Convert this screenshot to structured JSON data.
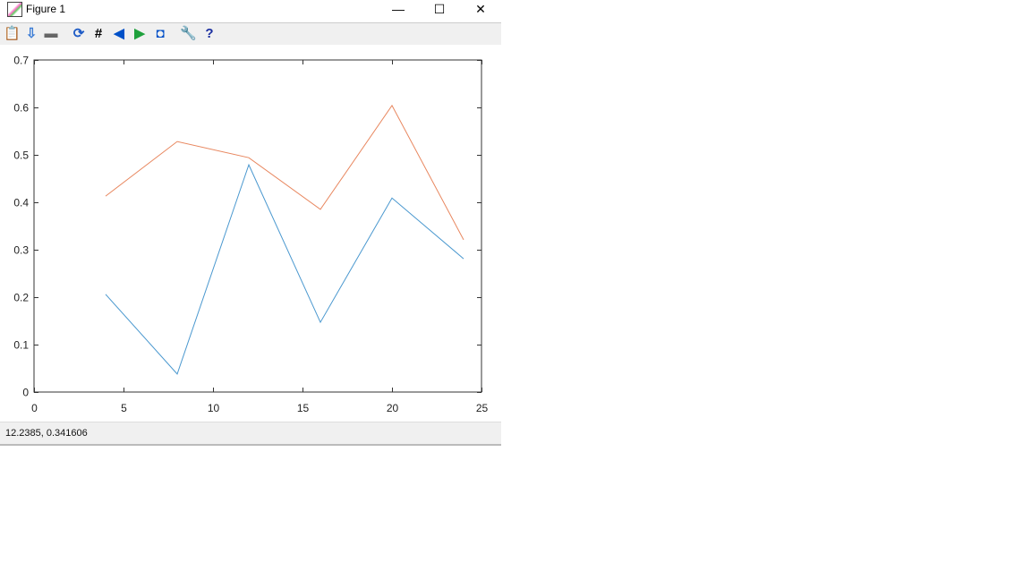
{
  "window": {
    "title": "Figure 1",
    "minimize": "—",
    "maximize": "☐",
    "close": "✕"
  },
  "toolbar": [
    {
      "name": "copy-icon",
      "glyph": "📋",
      "color": "#c8b48c"
    },
    {
      "name": "save-icon",
      "glyph": "⇩",
      "color": "#3a7bd5"
    },
    {
      "name": "print-icon",
      "glyph": "▬",
      "color": "#666"
    },
    {
      "name": "rotate-icon",
      "glyph": "⟳",
      "color": "#1e5bc6"
    },
    {
      "name": "grid-icon",
      "glyph": "#",
      "color": "#000"
    },
    {
      "name": "zoom-in-icon",
      "glyph": "◀",
      "color": "#0050c8"
    },
    {
      "name": "zoom-out-icon",
      "glyph": "▶",
      "color": "#1ea03c"
    },
    {
      "name": "autoscale-icon",
      "glyph": "◘",
      "color": "#0050c8"
    },
    {
      "name": "settings-icon",
      "glyph": "🔧",
      "color": "#d09020"
    },
    {
      "name": "help-icon",
      "glyph": "?",
      "color": "#1a2ea0"
    }
  ],
  "status": {
    "coords": "12.2385,  0.341606"
  },
  "chart_data": {
    "type": "line",
    "xlim": [
      0,
      25
    ],
    "ylim": [
      0,
      0.7
    ],
    "xticks": [
      0,
      5,
      10,
      15,
      20,
      25
    ],
    "yticks": [
      0,
      0.1,
      0.2,
      0.3,
      0.4,
      0.5,
      0.6,
      0.7
    ],
    "xtick_labels": [
      "0",
      "5",
      "10",
      "15",
      "20",
      "25"
    ],
    "ytick_labels": [
      "0",
      "0.1",
      "0.2",
      "0.3",
      "0.4",
      "0.5",
      "0.6",
      "0.7"
    ],
    "grid": false,
    "x": [
      4,
      8,
      12,
      16,
      20,
      24
    ],
    "series": [
      {
        "color": "#4a98cf",
        "values": [
          0.206,
          0.038,
          0.479,
          0.147,
          0.409,
          0.281
        ]
      },
      {
        "color": "#e8875f",
        "values": [
          0.413,
          0.528,
          0.494,
          0.385,
          0.604,
          0.321
        ]
      }
    ]
  }
}
